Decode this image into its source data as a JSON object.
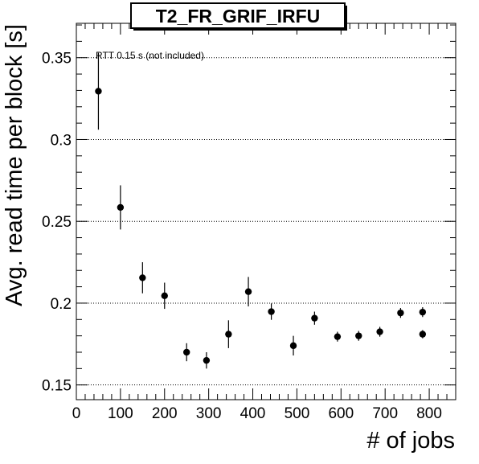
{
  "chart_data": {
    "type": "scatter",
    "title": "T2_FR_GRIF_IRFU",
    "xlabel": "# of jobs",
    "ylabel": "Avg. read time per block [s]",
    "annotation": "RTT 0.15 s (not included)",
    "xlim": [
      0,
      860
    ],
    "ylim": [
      0.141,
      0.371
    ],
    "xticks": [
      0,
      100,
      200,
      300,
      400,
      500,
      600,
      700,
      800
    ],
    "yticks": [
      0.15,
      0.2,
      0.25,
      0.3,
      0.35
    ],
    "ytick_labels": [
      "0.15",
      "0.2",
      "0.25",
      "0.3",
      "0.35"
    ],
    "grid": "horizontal-dotted",
    "points": [
      {
        "x": 50,
        "y": 0.3295,
        "err": 0.0235
      },
      {
        "x": 100,
        "y": 0.2585,
        "err": 0.0135
      },
      {
        "x": 150,
        "y": 0.2155,
        "err": 0.0095
      },
      {
        "x": 200,
        "y": 0.2045,
        "err": 0.008
      },
      {
        "x": 250,
        "y": 0.17,
        "err": 0.0055
      },
      {
        "x": 295,
        "y": 0.165,
        "err": 0.005
      },
      {
        "x": 345,
        "y": 0.181,
        "err": 0.0085
      },
      {
        "x": 390,
        "y": 0.207,
        "err": 0.009
      },
      {
        "x": 442,
        "y": 0.1948,
        "err": 0.005
      },
      {
        "x": 492,
        "y": 0.174,
        "err": 0.006
      },
      {
        "x": 540,
        "y": 0.1908,
        "err": 0.004
      },
      {
        "x": 592,
        "y": 0.1795,
        "err": 0.003
      },
      {
        "x": 640,
        "y": 0.18,
        "err": 0.003
      },
      {
        "x": 688,
        "y": 0.1825,
        "err": 0.003
      },
      {
        "x": 735,
        "y": 0.194,
        "err": 0.003
      },
      {
        "x": 785,
        "y": 0.1945,
        "err": 0.003
      },
      {
        "x": 785,
        "y": 0.181,
        "err": 0.0025
      }
    ]
  }
}
